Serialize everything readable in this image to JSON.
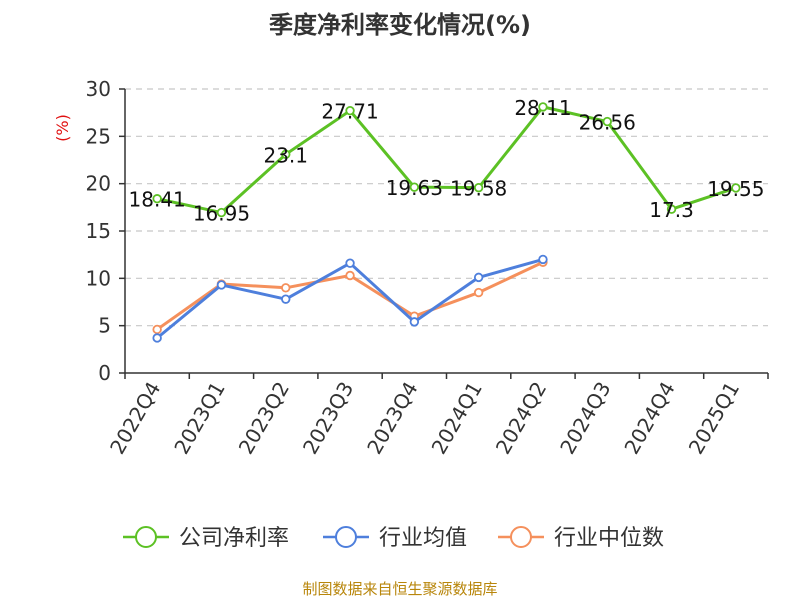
{
  "chart_data": {
    "type": "line",
    "title": "季度净利率变化情况(%)",
    "ylabel": "(%)",
    "xlabel": "",
    "ylim": [
      0,
      30
    ],
    "yticks": [
      0,
      5,
      10,
      15,
      20,
      25,
      30
    ],
    "grid": true,
    "legend": "bottom",
    "categories": [
      "2022Q4",
      "2023Q1",
      "2023Q2",
      "2023Q3",
      "2023Q4",
      "2024Q1",
      "2024Q2",
      "2024Q3",
      "2024Q4",
      "2025Q1"
    ],
    "series": [
      {
        "name": "公司净利率",
        "color": "#5cc124",
        "values": [
          18.41,
          16.95,
          23.1,
          27.71,
          19.63,
          19.58,
          28.11,
          26.56,
          17.3,
          19.55
        ],
        "labels": [
          "18.41",
          "16.95",
          "23.1",
          "27.71",
          "19.63",
          "19.58",
          "28.11",
          "26.56",
          "17.3",
          "19.55"
        ],
        "show_labels": true
      },
      {
        "name": "行业均值",
        "color": "#4e7fdc",
        "values": [
          3.7,
          9.3,
          7.8,
          11.6,
          5.4,
          10.1,
          12.0,
          null,
          null,
          null
        ],
        "show_labels": false
      },
      {
        "name": "行业中位数",
        "color": "#f5905c",
        "values": [
          4.6,
          9.4,
          9.0,
          10.3,
          6.0,
          8.5,
          11.7,
          null,
          null,
          null
        ],
        "show_labels": false
      }
    ]
  },
  "source": "制图数据来自恒生聚源数据库"
}
